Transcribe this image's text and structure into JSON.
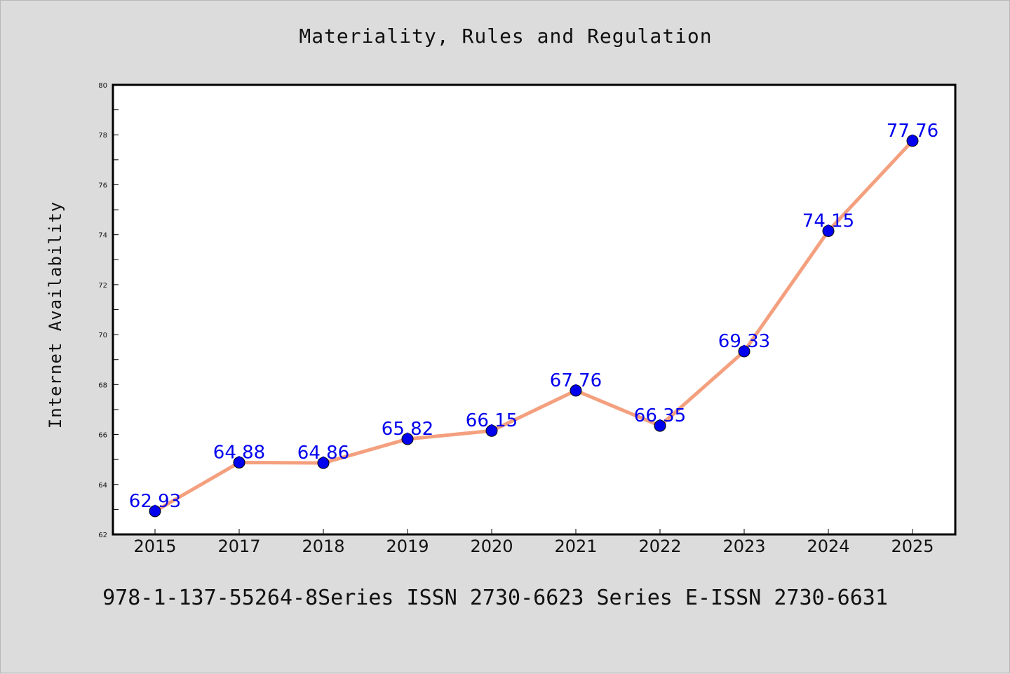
{
  "title": "Materiality, Rules and Regulation",
  "caption": "978-1-137-55264-8Series ISSN 2730-6623 Series E-ISSN 2730-6631",
  "chart_data": {
    "type": "line",
    "title": "Materiality, Rules and Regulation",
    "xlabel": "",
    "ylabel": "Internet Availability",
    "categories": [
      "2015",
      "2017",
      "2018",
      "2019",
      "2020",
      "2021",
      "2022",
      "2023",
      "2024",
      "2025"
    ],
    "series": [
      {
        "values": [
          62.93,
          64.88,
          64.86,
          65.82,
          66.15,
          67.76,
          66.35,
          69.33,
          74.15,
          77.76
        ],
        "data_labels": [
          "62.93",
          "64.88",
          "64.86",
          "65.82",
          "66.15",
          "67.76",
          "66.35",
          "69.33",
          "74.15",
          "77.76"
        ]
      }
    ],
    "ylim": [
      62,
      80
    ],
    "yticks": [
      "62",
      "64",
      "66",
      "68",
      "70",
      "72",
      "74",
      "76",
      "78",
      "80"
    ],
    "grid": false,
    "legend": "none",
    "colors": {
      "line": "#f4a07f",
      "marker": "#0000ee",
      "data_label": "#0000ee",
      "axis": "#000000",
      "plot_background": "#ffffff",
      "figure_background": "#dcdcdc"
    }
  }
}
